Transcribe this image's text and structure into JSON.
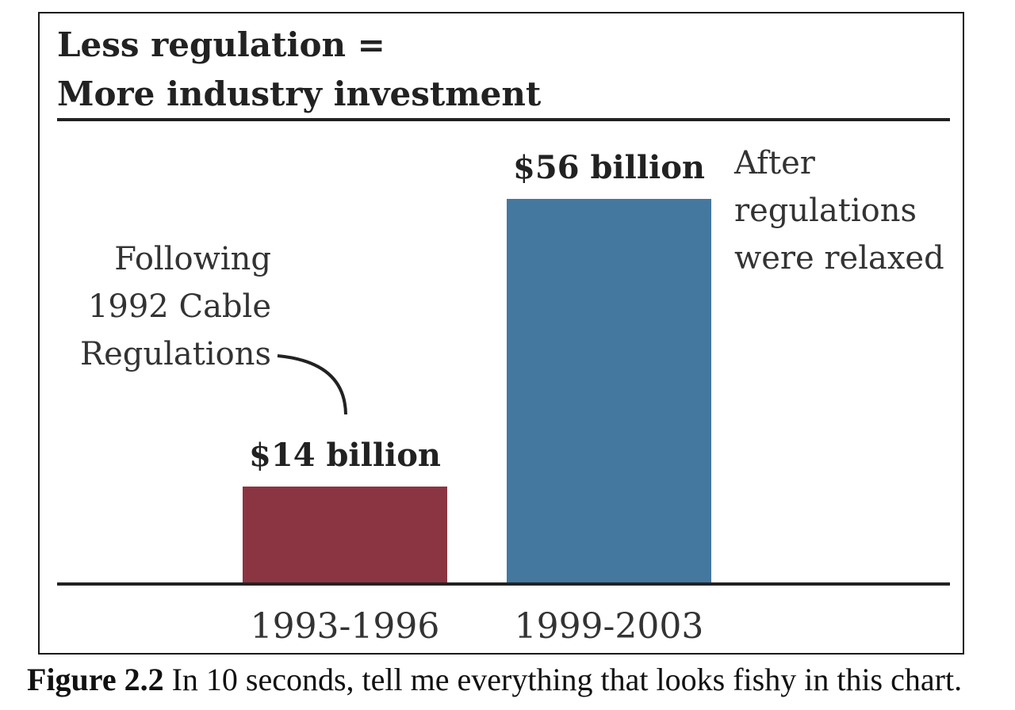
{
  "chart_data": {
    "type": "bar",
    "title_line1": "Less regulation =",
    "title_line2": "More industry investment",
    "categories": [
      "1993-1996",
      "1999-2003"
    ],
    "values": [
      14,
      56
    ],
    "value_labels": [
      "$14 billion",
      "$56 billion"
    ],
    "colors": [
      "#8c3542",
      "#44789f"
    ],
    "annotations": [
      {
        "lines": [
          "Following",
          "1992 Cable",
          "Regulations"
        ]
      },
      {
        "lines": [
          "After",
          "regulations",
          "were relaxed"
        ]
      }
    ],
    "units": "billion USD",
    "xlabel": "",
    "ylabel": ""
  },
  "caption": {
    "label": "Figure 2.2",
    "text": " In 10 seconds, tell me everything that looks fishy in this chart."
  }
}
